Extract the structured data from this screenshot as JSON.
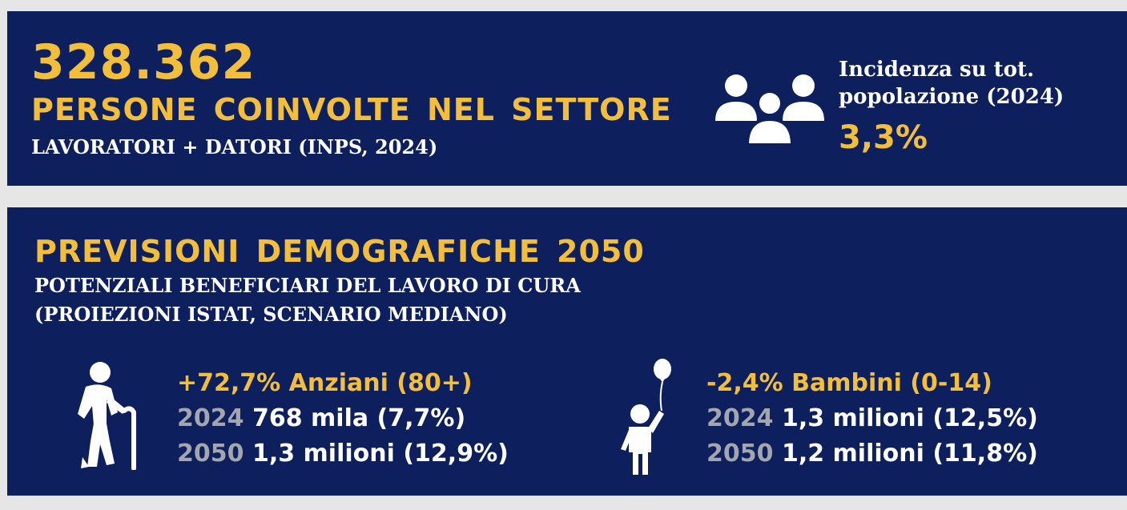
{
  "summary": {
    "big_number": "328.362",
    "title": "PERSONE COINVOLTE NEL SETTORE",
    "subtitle": "LAVORATORI + DATORI (INPS, 2024)",
    "incidence_label_line1": "Incidenza su tot.",
    "incidence_label_line2": "popolazione (2024)",
    "incidence_value": "3,3%",
    "icon": "people-group-icon"
  },
  "projections": {
    "title": "PREVISIONI DEMOGRAFICHE 2050",
    "subtitle_line1": "POTENZIALI BENEFICIARI DEL LAVORO DI CURA",
    "subtitle_line2": "(PROIEZIONI ISTAT, SCENARIO MEDIANO)",
    "elderly": {
      "icon": "elderly-person-icon",
      "headline": "+72,7% Anziani (80+)",
      "rows": [
        {
          "year": "2024",
          "value": "768 mila (7,7%)"
        },
        {
          "year": "2050",
          "value": "1,3 milioni (12,9%)"
        }
      ]
    },
    "children": {
      "icon": "child-with-balloon-icon",
      "headline": "-2,4% Bambini (0-14)",
      "rows": [
        {
          "year": "2024",
          "value": "1,3 milioni (12,5%)"
        },
        {
          "year": "2050",
          "value": "1,2 milioni (11,8%)"
        }
      ]
    }
  },
  "colors": {
    "panel_background": "#0d1f5c",
    "accent_yellow": "#f3bf3a",
    "text_white": "#ffffff",
    "year_grey": "#a3a6ae"
  }
}
